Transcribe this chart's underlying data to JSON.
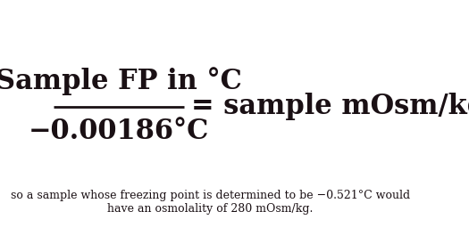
{
  "fraction_numerator": "Sample FP in °C",
  "fraction_denominator": "−0.00186°C",
  "equals_text": "= sample mOsm/kg",
  "bottom_text": "so a sample whose freezing point is determined to be −0.521°C would have an osmolality of 280 mOsm/kg.",
  "bg_color": "#ffffff",
  "text_color": "#1a1014",
  "font_size_large": 22,
  "font_size_small": 9,
  "fraction_bar_color": "#1a1014"
}
